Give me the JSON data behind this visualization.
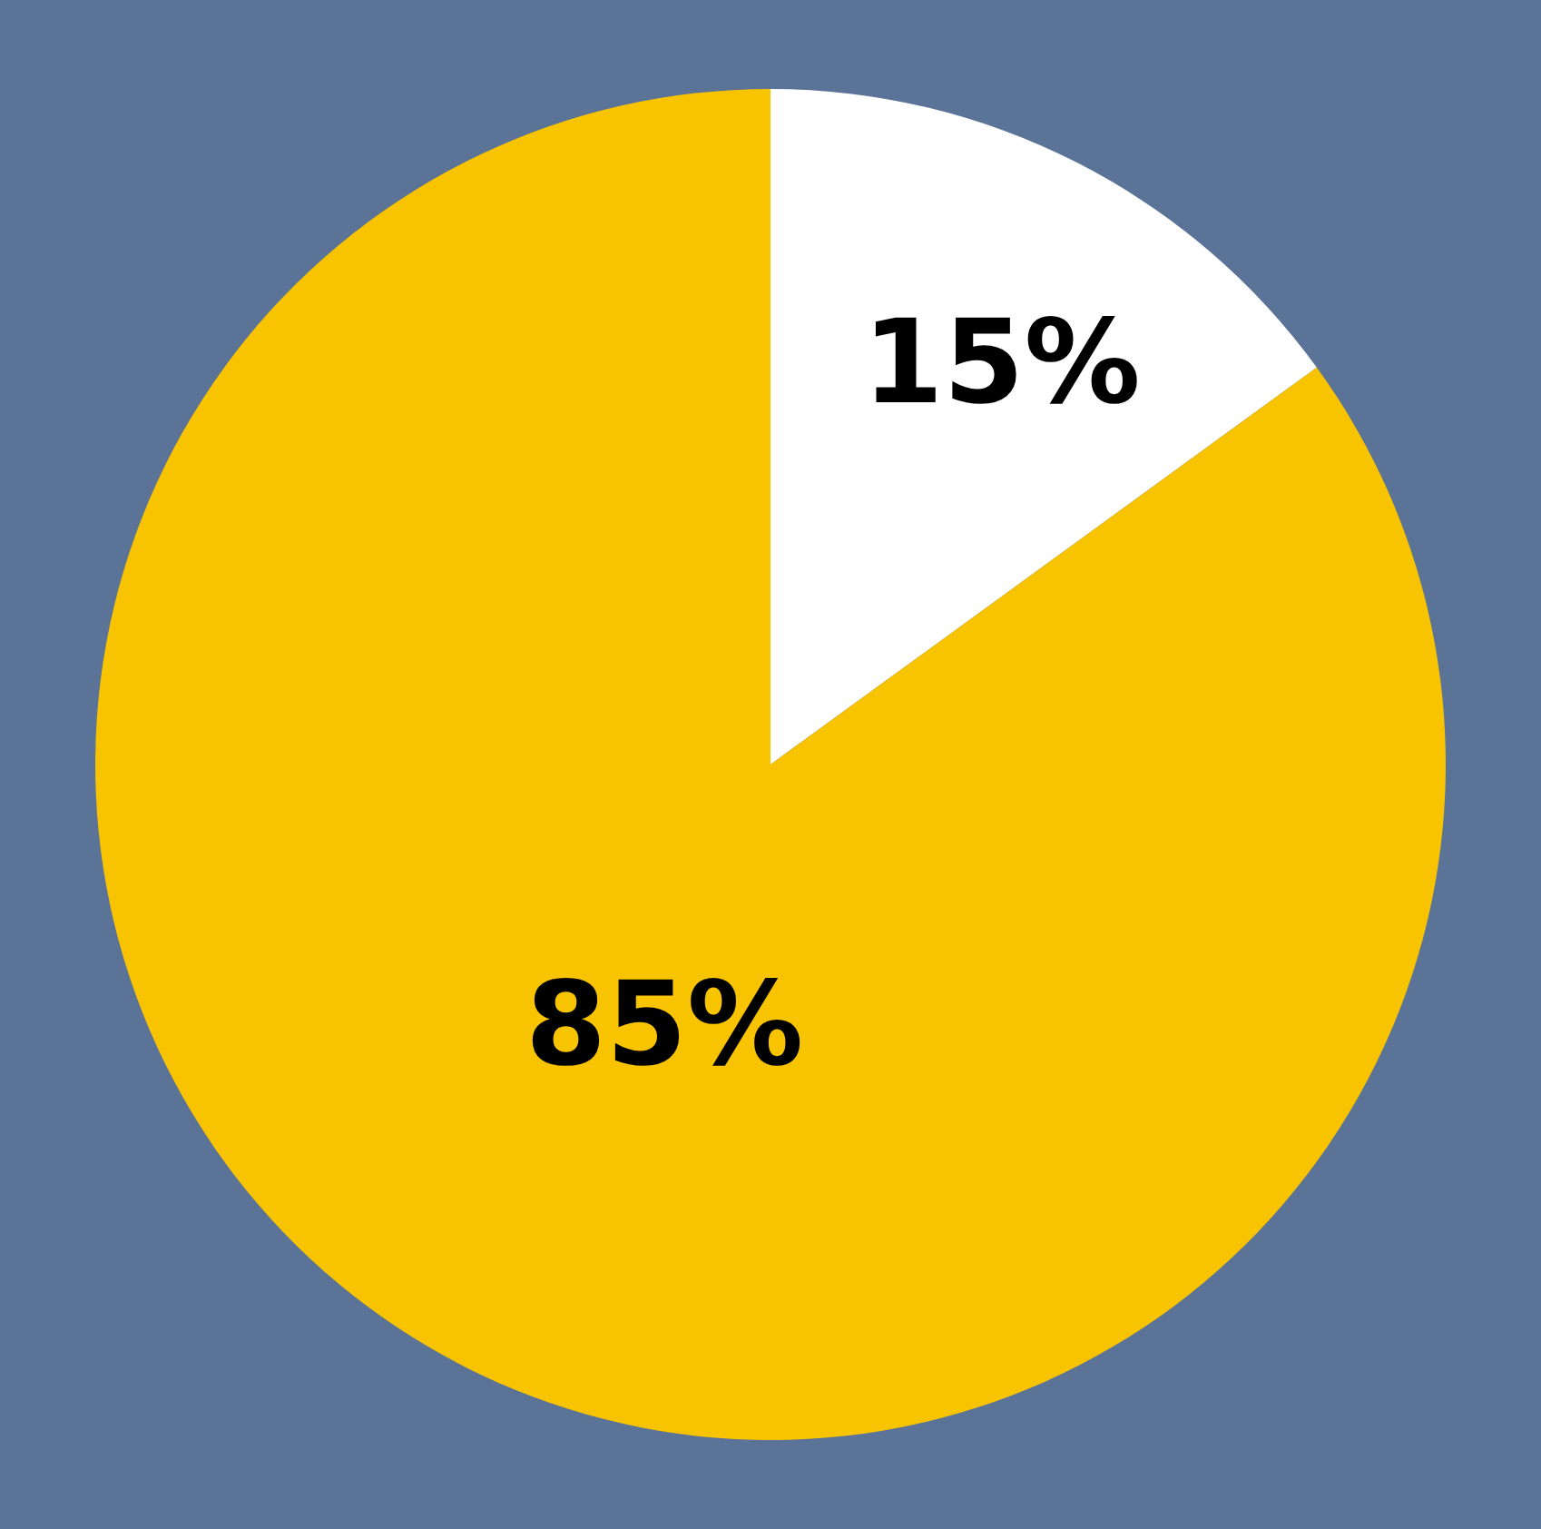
{
  "chart_data": {
    "type": "pie",
    "categories": [
      null,
      null
    ],
    "values": [
      15,
      85
    ],
    "colors": [
      "#ffffff",
      "#f8c300"
    ],
    "value_labels": [
      "15%",
      "85%"
    ]
  }
}
